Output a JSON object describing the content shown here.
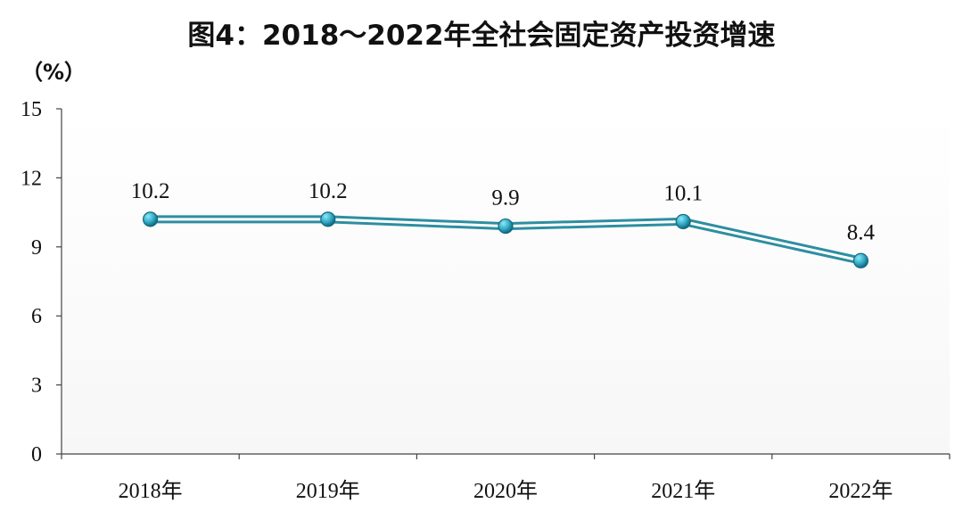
{
  "title": "图4：2018～2022年全社会固定资产投资增速",
  "unit_label": "（%）",
  "colors": {
    "line": "#2d8ea0",
    "line_inner": "#ffffff",
    "marker_light": "#8fe7f4",
    "marker_mid": "#35aecb",
    "marker_dark": "#13687d",
    "axis": "#444444",
    "plot_bg": "#fbfbfb"
  },
  "chart_data": {
    "type": "line",
    "categories": [
      "2018年",
      "2019年",
      "2020年",
      "2021年",
      "2022年"
    ],
    "series": [
      {
        "values": [
          10.2,
          10.2,
          9.9,
          10.1,
          8.4
        ],
        "data_labels": [
          "10.2",
          "10.2",
          "9.9",
          "10.1",
          "8.4"
        ]
      }
    ],
    "ylim": [
      0,
      15
    ],
    "y_ticks": [
      0,
      3,
      6,
      9,
      12,
      15
    ],
    "y_tick_labels": [
      "0",
      "3",
      "6",
      "9",
      "12",
      "15"
    ],
    "grid": false,
    "legend": "none",
    "xlabel": "",
    "ylabel": "（%）",
    "title": "图4：2018～2022年全社会固定资产投资增速"
  }
}
